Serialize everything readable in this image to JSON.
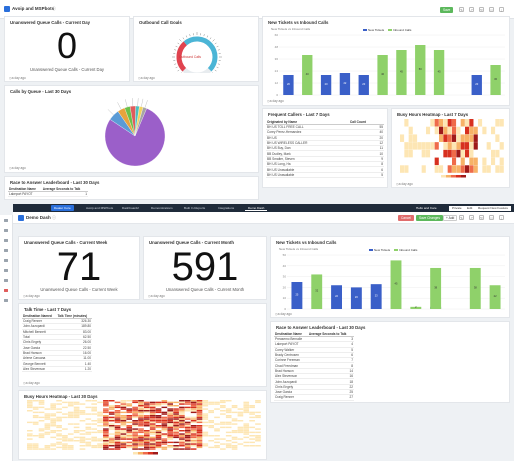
{
  "top": {
    "title": "Avoip and MSPbots",
    "save_label": "Save",
    "panels": {
      "unanswered_day": {
        "title": "Unanswered Queue Calls - Current Day",
        "value": "0",
        "caption": "Unanswered Queue Calls - Current Day",
        "ago": "a day ago"
      },
      "outbound_goals": {
        "title": "Outbound Call Goals",
        "gauge_label": "Outbound Calls",
        "gauge_fraction": 0.35,
        "ago": "a day ago"
      },
      "new_tickets": {
        "title": "New Tickets vs Inbound Calls",
        "subtitle": "New Tickets vs Inbound Calls",
        "legend": [
          "New Tickets",
          "Inbound Calls"
        ],
        "ago": "a day ago"
      },
      "calls_by_queue": {
        "title": "Calls by Queue - Last 30 Days",
        "ago": "a day ago"
      },
      "frequent_callers": {
        "title": "Frequent Callers - Last 7 Days",
        "col1": "Originated by Name",
        "col2": "Call Count",
        "ago": "a day ago"
      },
      "busy_hours": {
        "title": "Busy Hours Heatmap - Last 7 Days",
        "ago": "a day ago"
      },
      "race": {
        "title": "Race to Answer Leaderboard - Last 30 Days",
        "col1": "Destination Name",
        "col2": "Average Seconds to Talk",
        "ago": "a day ago"
      }
    },
    "frequent_rows": [
      [
        "BH US TOLL FREE CALL",
        "55"
      ],
      [
        "Corey Perez-Hernandez",
        "40"
      ],
      [
        "BH US",
        "20"
      ],
      [
        "BH US WIRELESS CALLER",
        "12"
      ],
      [
        "BH US Buy, Dan",
        "11"
      ],
      [
        "BB Dudley, Mark",
        "10"
      ],
      [
        "BB Smalter, Steven",
        "9"
      ],
      [
        "BH US Long, Ha",
        "8"
      ],
      [
        "BH US Unavailable",
        "6"
      ],
      [
        "BH US Unavailable",
        "5"
      ]
    ],
    "race_rows": [
      [
        "Lakeport PAYOT",
        "1"
      ]
    ]
  },
  "bottom": {
    "title": "Demo Dash",
    "nav_tabs": [
      "Dealer Core",
      "Avoip and MSPbots",
      "Dashboard2",
      "Demonstrations",
      "Built In Reports",
      "Integrations",
      "Demo Dash"
    ],
    "active_tab": "Demo Dash",
    "hello_label": "Hello and Care",
    "btn_private": "Private",
    "btn_edit": "Edit",
    "btn_request": "Request New Feature",
    "btn_cancel": "Cancel",
    "btn_save_changes": "Save Changes",
    "btn_add": "+ Add",
    "panels": {
      "unanswered_week": {
        "title": "Unanswered Queue Calls - Current Week",
        "value": "71",
        "caption": "Unanswered Queue Calls - Current Week",
        "ago": "a day ago"
      },
      "unanswered_month": {
        "title": "Unanswered Queue Calls - Current Month",
        "value": "591",
        "caption": "Unanswered Queue Calls - Current Month",
        "ago": "a day ago"
      },
      "new_tickets": {
        "title": "New Tickets vs Inbound Calls",
        "subtitle": "New Tickets vs Inbound Calls",
        "legend": [
          "New Tickets",
          "Inbound Calls"
        ],
        "ago": "a day ago"
      },
      "talk_time": {
        "title": "Talk Time - Last 7 Days",
        "col1": "Destination Named",
        "col2": "Talk Time (minutes)",
        "ago": "a day ago"
      },
      "race": {
        "title": "Race to Answer Leaderboard - Last 30 Days",
        "col1": "Destination Name",
        "col2": "Average Seconds to Talk",
        "ago": "a day ago"
      },
      "busy_hours": {
        "title": "Busy Hours Heatmap - Last 30 Days",
        "ago": "a day ago"
      }
    },
    "talk_rows": [
      [
        "Craig Renner",
        "326.30"
      ],
      [
        "John Azzopardi",
        "189.80"
      ],
      [
        "Mitchell Bennett",
        "83.00"
      ],
      [
        "Total",
        "62.50"
      ],
      [
        "Chris Engely",
        "26.00"
      ],
      [
        "Jose Garcia",
        "22.50"
      ],
      [
        "Brad Hanson",
        "16.00"
      ],
      [
        "Arlene Caruana",
        "11.00"
      ],
      [
        "George Bennett",
        "1.40"
      ],
      [
        "Alex Stevenson",
        "1.20"
      ]
    ],
    "race_rows": [
      [
        "Preasemo Bernalle",
        "3"
      ],
      [
        "Lakeport PAYOT",
        "4"
      ],
      [
        "Corey Walker",
        "5"
      ],
      [
        "Brady Centrosen",
        "6"
      ],
      [
        "Corinne Freeman",
        "7"
      ],
      [
        "Chad Freedman",
        "8"
      ],
      [
        "Brad Hanson",
        "14"
      ],
      [
        "Alex Stevenson",
        "16"
      ],
      [
        "John Azzopardi",
        "18"
      ],
      [
        "Chris Engely",
        "22"
      ],
      [
        "Jose Garcia",
        "25"
      ],
      [
        "Craig Renner",
        "27"
      ]
    ]
  },
  "chart_data": [
    {
      "type": "bar",
      "title": "New Tickets vs Inbound Calls",
      "categories": [
        "1",
        "2",
        "3",
        "4",
        "5",
        "6",
        "7",
        "8",
        "9",
        "10",
        "11",
        "12"
      ],
      "series": [
        {
          "name": "New Tickets",
          "values": [
            20,
            0,
            20,
            22,
            20,
            0,
            0,
            0,
            0,
            0,
            20,
            0
          ]
        },
        {
          "name": "Inbound Calls",
          "values": [
            0,
            40,
            0,
            0,
            0,
            40,
            45,
            50,
            45,
            0,
            0,
            30
          ]
        }
      ],
      "ylim": [
        0,
        60
      ],
      "colors": [
        "#3a5fc8",
        "#8fd16a"
      ]
    },
    {
      "type": "pie",
      "title": "Calls by Queue - Last 30 Days",
      "values": [
        78,
        6,
        4,
        3,
        3,
        2,
        2,
        2
      ],
      "colors": [
        "#9b5fc9",
        "#5b9bd5",
        "#e8a33d",
        "#6cc04a",
        "#e05c5c",
        "#4bc0c0",
        "#f2d35c",
        "#a5a5a5"
      ]
    },
    {
      "type": "bar",
      "title": "New Tickets vs Inbound Calls",
      "categories": [
        "1",
        "2",
        "3",
        "4",
        "5",
        "6",
        "7",
        "8",
        "9",
        "10",
        "11"
      ],
      "series": [
        {
          "name": "New Tickets",
          "values": [
            25,
            0,
            22,
            20,
            23,
            0,
            0,
            2,
            0,
            0,
            0
          ]
        },
        {
          "name": "Inbound Calls",
          "values": [
            0,
            32,
            0,
            0,
            0,
            45,
            2,
            38,
            0,
            38,
            22
          ]
        }
      ],
      "ylim": [
        0,
        50
      ],
      "colors": [
        "#3a5fc8",
        "#8fd16a"
      ]
    },
    {
      "type": "heatmap",
      "title": "Busy Hours Heatmap - Last 7 Days",
      "rows": 7,
      "cols": 24
    },
    {
      "type": "heatmap",
      "title": "Busy Hours Heatmap - Last 30 Days",
      "rows": 30,
      "cols": 40
    }
  ]
}
